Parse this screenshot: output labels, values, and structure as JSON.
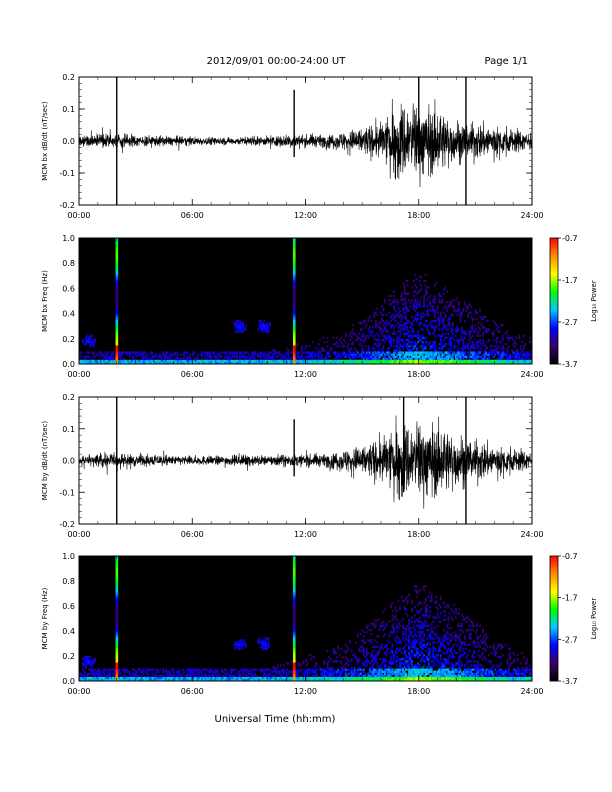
{
  "header": {
    "title": "2012/09/01   00:00-24:00 UT",
    "page": "Page 1/1"
  },
  "x_axis": {
    "label": "Universal Time (hh:mm)",
    "ticks": [
      "00:00",
      "06:00",
      "12:00",
      "18:00",
      "24:00"
    ],
    "range_hours": [
      0,
      24
    ]
  },
  "colorbar": {
    "label": "Log₁₀ Power",
    "ticks": [
      "-0.7",
      "-1.7",
      "-2.7",
      "-3.7"
    ],
    "range": [
      -3.7,
      -0.7
    ],
    "colors": [
      "#000000",
      "#3a0066",
      "#0000ff",
      "#00c8ff",
      "#00ff00",
      "#ffff00",
      "#ff8c00",
      "#ff0000"
    ]
  },
  "chart_data": [
    {
      "type": "line",
      "ylabel": "MCM bx dB/dt (nT/sec)",
      "ylim": [
        -0.2,
        0.2
      ],
      "yticks": [
        "0.2",
        "0.1",
        "0.0",
        "-0.1",
        "-0.2"
      ],
      "baseline_noise": 0.02,
      "envelope": [
        [
          0,
          0.015
        ],
        [
          1.5,
          0.025
        ],
        [
          3,
          0.02
        ],
        [
          5,
          0.015
        ],
        [
          8,
          0.012
        ],
        [
          10,
          0.015
        ],
        [
          11,
          0.02
        ],
        [
          12,
          0.02
        ],
        [
          13,
          0.02
        ],
        [
          14,
          0.03
        ],
        [
          15,
          0.045
        ],
        [
          16,
          0.06
        ],
        [
          17,
          0.13
        ],
        [
          18,
          0.12
        ],
        [
          19,
          0.1
        ],
        [
          20,
          0.07
        ],
        [
          21,
          0.06
        ],
        [
          22,
          0.05
        ],
        [
          23,
          0.04
        ],
        [
          24,
          0.03
        ]
      ],
      "spikes": [
        {
          "t": 2.0,
          "min": -0.2,
          "max": 0.2
        },
        {
          "t": 11.4,
          "min": -0.05,
          "max": 0.16
        },
        {
          "t": 18.0,
          "min": -0.07,
          "max": 0.2
        },
        {
          "t": 20.5,
          "min": -0.2,
          "max": 0.2
        }
      ]
    },
    {
      "type": "heatmap",
      "ylabel": "MCM bx Freq (Hz)",
      "ylim": [
        0,
        1.0
      ],
      "yticks": [
        "1.0",
        "0.8",
        "0.6",
        "0.4",
        "0.2",
        "0.0"
      ],
      "vertical_bursts": [
        2.0,
        11.4
      ],
      "patches": [
        {
          "t": 0.5,
          "f": 0.18
        },
        {
          "t": 8.5,
          "f": 0.3
        },
        {
          "t": 9.8,
          "f": 0.3
        }
      ],
      "activity_envelope": [
        [
          0,
          0.1
        ],
        [
          10,
          0.1
        ],
        [
          14,
          0.25
        ],
        [
          16,
          0.5
        ],
        [
          18,
          0.75
        ],
        [
          20,
          0.55
        ],
        [
          22,
          0.35
        ],
        [
          24,
          0.2
        ]
      ]
    },
    {
      "type": "line",
      "ylabel": "MCM by dB/dt (nT/sec)",
      "ylim": [
        -0.2,
        0.2
      ],
      "yticks": [
        "0.2",
        "0.1",
        "0.0",
        "-0.1",
        "-0.2"
      ],
      "baseline_noise": 0.02,
      "envelope": [
        [
          0,
          0.015
        ],
        [
          1.5,
          0.025
        ],
        [
          3,
          0.02
        ],
        [
          5,
          0.015
        ],
        [
          8,
          0.015
        ],
        [
          9,
          0.02
        ],
        [
          10,
          0.015
        ],
        [
          11,
          0.02
        ],
        [
          12,
          0.02
        ],
        [
          13,
          0.02
        ],
        [
          14,
          0.035
        ],
        [
          15,
          0.05
        ],
        [
          16,
          0.07
        ],
        [
          17,
          0.12
        ],
        [
          18,
          0.13
        ],
        [
          19,
          0.11
        ],
        [
          20,
          0.09
        ],
        [
          21,
          0.07
        ],
        [
          22,
          0.05
        ],
        [
          23,
          0.04
        ],
        [
          24,
          0.03
        ]
      ],
      "spikes": [
        {
          "t": 2.0,
          "min": -0.2,
          "max": 0.2
        },
        {
          "t": 11.4,
          "min": -0.05,
          "max": 0.13
        },
        {
          "t": 17.2,
          "min": -0.1,
          "max": 0.2
        },
        {
          "t": 20.5,
          "min": -0.2,
          "max": 0.2
        }
      ]
    },
    {
      "type": "heatmap",
      "ylabel": "MCM by Freq (Hz)",
      "ylim": [
        0,
        1.0
      ],
      "yticks": [
        "1.0",
        "0.8",
        "0.6",
        "0.4",
        "0.2",
        "0.0"
      ],
      "vertical_bursts": [
        2.0,
        11.4
      ],
      "patches": [
        {
          "t": 0.5,
          "f": 0.15
        },
        {
          "t": 8.5,
          "f": 0.3
        },
        {
          "t": 9.8,
          "f": 0.3
        }
      ],
      "activity_envelope": [
        [
          0,
          0.1
        ],
        [
          10,
          0.1
        ],
        [
          14,
          0.3
        ],
        [
          16,
          0.55
        ],
        [
          18,
          0.8
        ],
        [
          20,
          0.6
        ],
        [
          22,
          0.35
        ],
        [
          24,
          0.2
        ]
      ]
    }
  ]
}
